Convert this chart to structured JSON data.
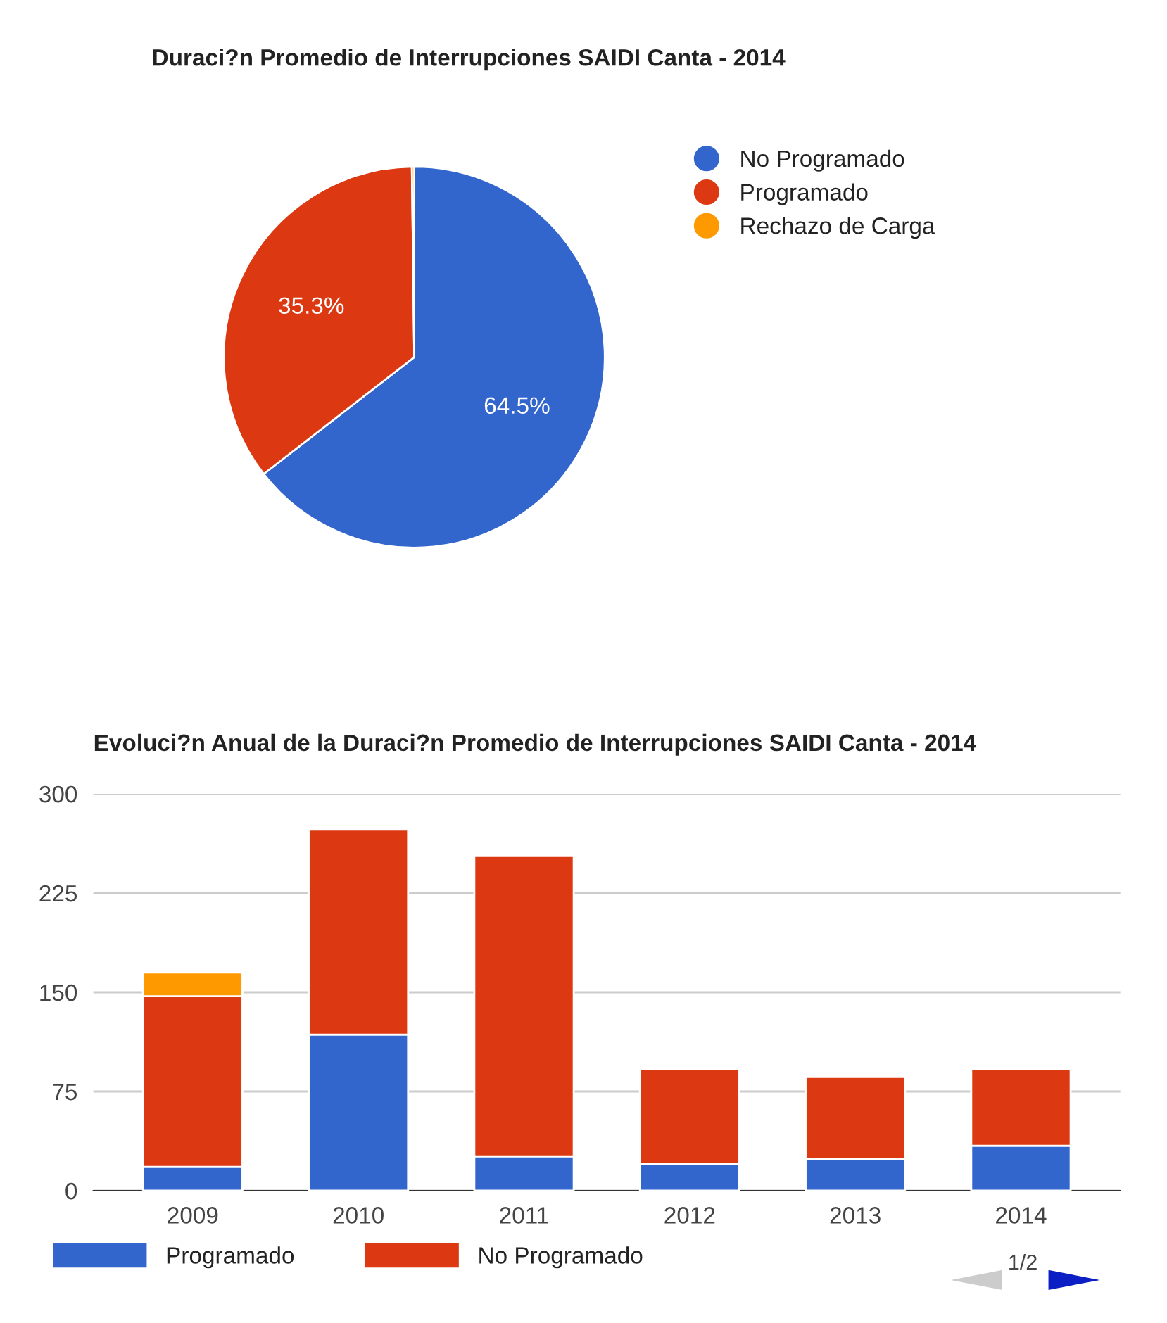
{
  "chart_data": [
    {
      "type": "pie",
      "title": "Duraci?n Promedio de Interrupciones SAIDI Canta - 2014",
      "categories": [
        "No Programado",
        "Programado",
        "Rechazo de Carga"
      ],
      "values": [
        64.5,
        35.3,
        0.2
      ],
      "colors": [
        "#3366cc",
        "#dc3912",
        "#ff9900"
      ],
      "value_labels": [
        "64.5%",
        "35.3%",
        null
      ],
      "legend": "right"
    },
    {
      "type": "bar",
      "title": "Evoluci?n Anual de la Duraci?n Promedio de Interrupciones SAIDI Canta - 2014",
      "categories": [
        "2009",
        "2010",
        "2011",
        "2012",
        "2013",
        "2014"
      ],
      "stacked": true,
      "series": [
        {
          "name": "Programado",
          "color": "#3366cc",
          "values": [
            18,
            118,
            26,
            20,
            24,
            34
          ]
        },
        {
          "name": "No Programado",
          "color": "#dc3912",
          "values": [
            129,
            155,
            227,
            72,
            62,
            58
          ]
        },
        {
          "color": "#ff9900",
          "values": [
            18,
            null,
            null,
            null,
            null,
            null
          ]
        }
      ],
      "ylim": [
        0,
        300
      ],
      "yticks": [
        0,
        75,
        150,
        225,
        300
      ],
      "grid": "y",
      "legend": "bottom",
      "annotations": [
        "1/2"
      ]
    }
  ]
}
